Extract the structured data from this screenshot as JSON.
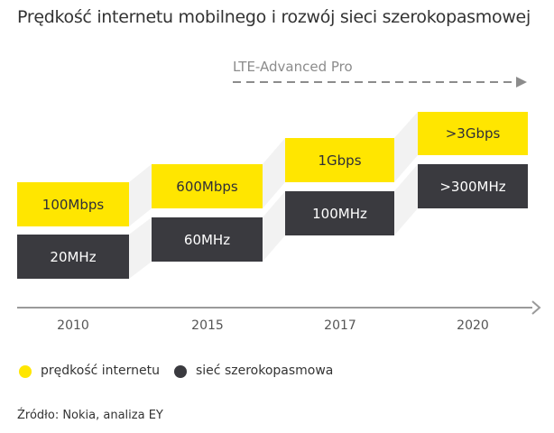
{
  "title": "Prędkość internetu mobilnego i rozwój sieci szerokopasmowej",
  "lte_label": "LTE-Advanced Pro",
  "columns": [
    {
      "year": "2010",
      "speed": "100Mbps",
      "bandwidth": "20MHz"
    },
    {
      "year": "2015",
      "speed": "600Mbps",
      "bandwidth": "60MHz"
    },
    {
      "year": "2017",
      "speed": "1Gbps",
      "bandwidth": "100MHz"
    },
    {
      "year": "2020",
      "speed": ">3Gbps",
      "bandwidth": ">300MHz"
    }
  ],
  "legend": {
    "speed": {
      "label": "prędkość internetu",
      "color": "#ffe600",
      "icon": "yellow-circle-icon"
    },
    "bandwidth": {
      "label": "sieć szerokopasmowa",
      "color": "#3a3a3f",
      "icon": "dark-circle-icon"
    }
  },
  "source": "Źródło: Nokia, analiza EY"
}
